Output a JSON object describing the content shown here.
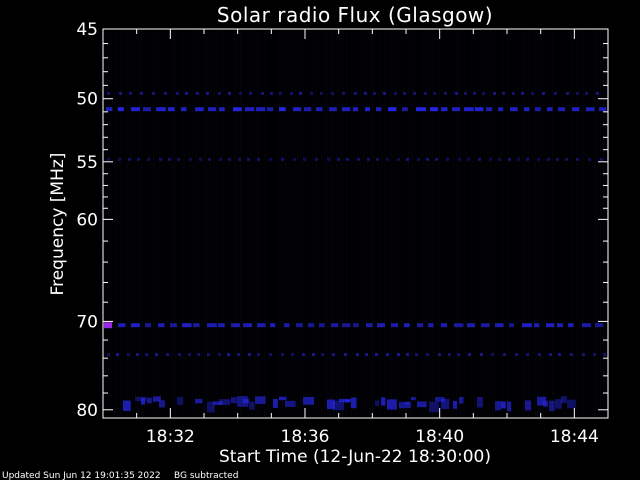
{
  "chart_data": {
    "type": "heatmap",
    "title": "Solar radio Flux (Glasgow)",
    "xlabel": "Start Time (12-Jun-22 18:30:00)",
    "ylabel": "Frequency [MHz]",
    "x_unit": "minutes after 18:30:00",
    "xlim": [
      0,
      15
    ],
    "ylim": [
      45,
      81
    ],
    "y_scale": "log",
    "x_ticks": [
      {
        "value": 2,
        "label": "18:32"
      },
      {
        "value": 6,
        "label": "18:36"
      },
      {
        "value": 10,
        "label": "18:40"
      },
      {
        "value": 14,
        "label": "18:44"
      }
    ],
    "y_ticks": [
      {
        "value": 45,
        "label": "45"
      },
      {
        "value": 50,
        "label": "50"
      },
      {
        "value": 55,
        "label": "55"
      },
      {
        "value": 60,
        "label": "60"
      },
      {
        "value": 70,
        "label": "70"
      },
      {
        "value": 80,
        "label": "80"
      }
    ],
    "bands": [
      {
        "freq": 49.6,
        "intensity": 0.55,
        "pattern": "dotted"
      },
      {
        "freq": 50.8,
        "intensity": 0.9,
        "pattern": "dashed"
      },
      {
        "freq": 54.8,
        "intensity": 0.45,
        "pattern": "dotted"
      },
      {
        "freq": 70.4,
        "intensity": 0.75,
        "pattern": "dashed"
      },
      {
        "freq": 73.6,
        "intensity": 0.6,
        "pattern": "dotted"
      },
      {
        "freq": 78.6,
        "intensity": 0.7,
        "pattern": "patchy"
      }
    ],
    "colors": {
      "background": "#000000",
      "text": "#ffffff",
      "low": "#000018",
      "high": "#2a2aff",
      "hot": "#b030ff"
    }
  },
  "footer": {
    "updated": "Updated Sun Jun 12 19:01:35 2022",
    "note": "BG subtracted"
  }
}
